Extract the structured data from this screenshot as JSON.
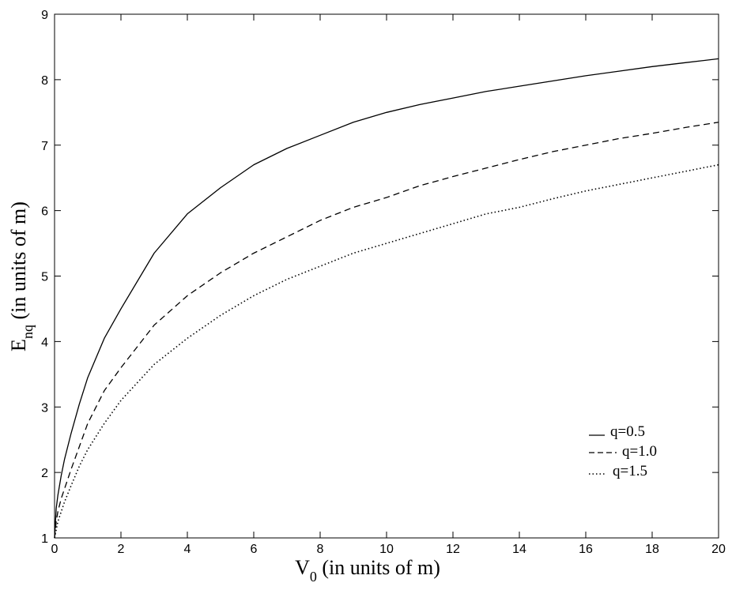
{
  "chart_data": {
    "type": "line",
    "xlabel": {
      "main": "V",
      "sub": "0",
      "rest": " (in units of m)"
    },
    "ylabel": {
      "main": "E",
      "sub": "nq",
      "rest": " (in units of m)"
    },
    "xlim": [
      0,
      20
    ],
    "ylim": [
      1,
      9
    ],
    "xticks": [
      0,
      2,
      4,
      6,
      8,
      10,
      12,
      14,
      16,
      18,
      20
    ],
    "yticks": [
      1,
      2,
      3,
      4,
      5,
      6,
      7,
      8,
      9
    ],
    "grid": false,
    "legend_position": "lower-right",
    "x": [
      0,
      0.05,
      0.1,
      0.2,
      0.3,
      0.5,
      0.75,
      1,
      1.5,
      2,
      3,
      4,
      5,
      6,
      7,
      8,
      9,
      10,
      11,
      12,
      13,
      14,
      15,
      16,
      17,
      18,
      19,
      20
    ],
    "series": [
      {
        "name": "q=0.5",
        "dash": "solid",
        "values": [
          1.0,
          1.45,
          1.65,
          1.95,
          2.2,
          2.6,
          3.05,
          3.45,
          4.05,
          4.5,
          5.35,
          5.95,
          6.35,
          6.7,
          6.95,
          7.15,
          7.35,
          7.5,
          7.62,
          7.72,
          7.82,
          7.9,
          7.98,
          8.06,
          8.13,
          8.2,
          8.26,
          8.32
        ]
      },
      {
        "name": "q=1.0",
        "dash": "dashed",
        "values": [
          1.0,
          1.25,
          1.4,
          1.6,
          1.75,
          2.05,
          2.4,
          2.75,
          3.25,
          3.6,
          4.25,
          4.7,
          5.05,
          5.35,
          5.6,
          5.85,
          6.05,
          6.2,
          6.38,
          6.52,
          6.65,
          6.78,
          6.9,
          7.0,
          7.1,
          7.18,
          7.27,
          7.35
        ]
      },
      {
        "name": "q=1.5",
        "dash": "dotted",
        "values": [
          1.0,
          1.12,
          1.25,
          1.4,
          1.55,
          1.8,
          2.1,
          2.35,
          2.75,
          3.1,
          3.65,
          4.05,
          4.4,
          4.7,
          4.95,
          5.15,
          5.35,
          5.5,
          5.65,
          5.8,
          5.95,
          6.05,
          6.18,
          6.3,
          6.4,
          6.5,
          6.6,
          6.7
        ]
      }
    ]
  }
}
